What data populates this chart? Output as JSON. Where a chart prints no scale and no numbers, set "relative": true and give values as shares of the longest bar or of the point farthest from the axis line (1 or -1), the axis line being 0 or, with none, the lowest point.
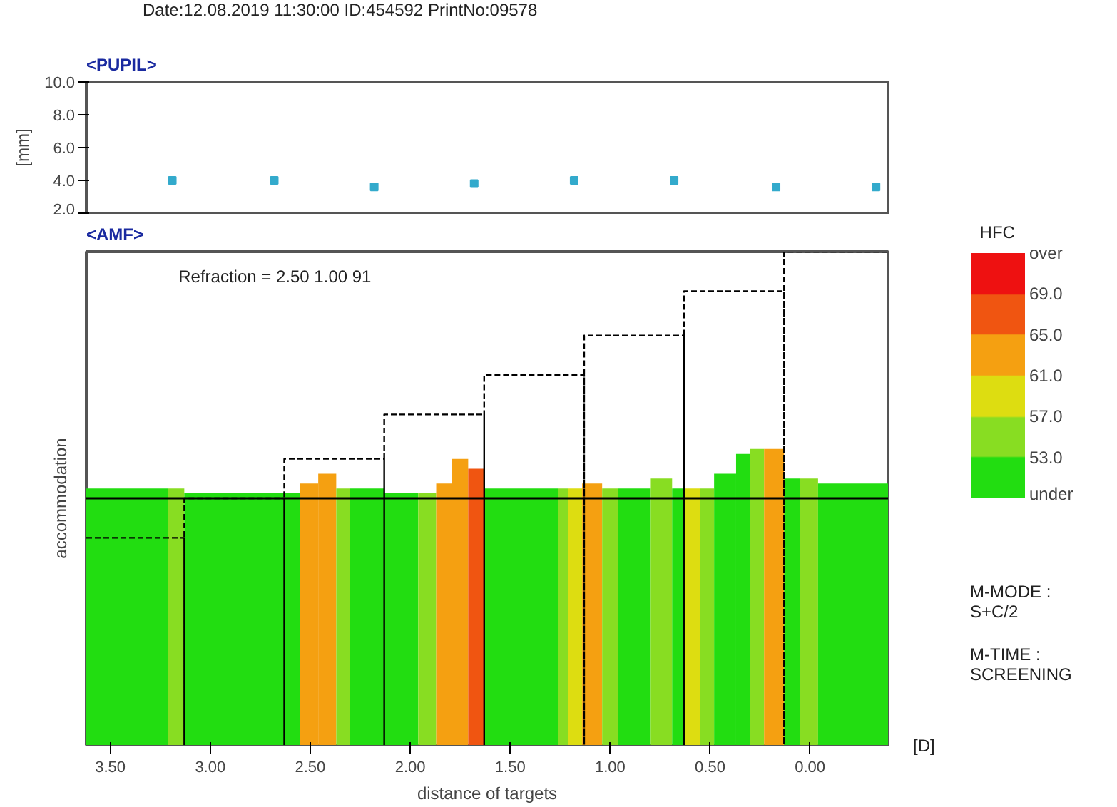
{
  "chart_data": [
    {
      "type": "scatter",
      "title": "<PUPIL>",
      "ylabel": "[mm]",
      "annotations": [
        "Date:12.08.2019 11:30:00  ID:454592  PrintNo:09578"
      ],
      "x": [
        3.19,
        2.68,
        2.18,
        1.68,
        1.18,
        0.68,
        0.17,
        -0.33
      ],
      "series": [
        {
          "color": "#33aacc",
          "values": [
            4.0,
            4.0,
            3.6,
            3.8,
            4.0,
            4.0,
            3.6,
            3.6
          ]
        }
      ],
      "marker": "square",
      "xlim": [
        3.62,
        -0.39
      ],
      "ylim": [
        2.0,
        10.0
      ],
      "yticks": [
        {
          "value": 2,
          "label": "2.0"
        },
        {
          "value": 4,
          "label": "4.0"
        },
        {
          "value": 6,
          "label": "6.0"
        },
        {
          "value": 8,
          "label": "8.0"
        },
        {
          "value": 10,
          "label": "10.0"
        }
      ],
      "tick_labels": "y"
    },
    {
      "type": "histogram",
      "title": "<AMF>",
      "xlabel": "distance of targets",
      "ylabel": "accommodation",
      "clabel": "HFC",
      "relative": true,
      "annotations": [
        "Refraction = 2.50  1.00  91",
        "M-MODE : S+C/2",
        "M-TIME : SCREENING",
        "[D]"
      ],
      "bins": [
        3.62,
        3.21,
        3.13,
        2.55,
        2.46,
        2.37,
        2.3,
        2.13,
        1.96,
        1.87,
        1.79,
        1.71,
        1.63,
        1.26,
        1.21,
        1.14,
        1.04,
        0.96,
        0.8,
        0.69,
        0.63,
        0.55,
        0.48,
        0.37,
        0.3,
        0.23,
        0.13,
        0.05,
        -0.04,
        -0.39
      ],
      "values": [
        0.52,
        0.52,
        0.51,
        0.53,
        0.55,
        0.52,
        0.52,
        0.51,
        0.51,
        0.53,
        0.58,
        0.56,
        0.52,
        0.52,
        0.52,
        0.53,
        0.52,
        0.52,
        0.54,
        0.52,
        0.52,
        0.52,
        0.55,
        0.59,
        0.6,
        0.6,
        0.54,
        0.54,
        0.53
      ],
      "colors": [
        "#22dd11",
        "#88dd22",
        "#22dd11",
        "#f5a011",
        "#f5a011",
        "#88dd22",
        "#22dd11",
        "#22dd11",
        "#88dd22",
        "#f5a011",
        "#f5a011",
        "#f05511",
        "#22dd11",
        "#88dd22",
        "#dddd11",
        "#f5a011",
        "#88dd22",
        "#22dd11",
        "#88dd22",
        "#22dd11",
        "#dddd11",
        "#88dd22",
        "#22dd11",
        "#22dd11",
        "#88dd22",
        "#f5a011",
        "#22dd11",
        "#88dd22",
        "#22dd11"
      ],
      "series": [
        {
          "type": "line",
          "color": "#000000",
          "line_style": "dashed",
          "x": [
            3.62,
            3.13,
            3.13,
            3.13,
            2.63,
            2.63,
            2.63,
            2.13,
            2.13,
            2.13,
            1.63,
            1.63,
            1.63,
            1.13,
            1.13,
            1.13,
            0.63,
            0.63,
            0.63,
            0.13,
            0.13,
            0.13,
            -0.39
          ],
          "values": [
            0.42,
            0.42,
            0,
            0.5,
            0.5,
            0,
            0.58,
            0.58,
            0,
            0.67,
            0.67,
            0,
            0.75,
            0.75,
            0,
            0.83,
            0.83,
            0,
            0.92,
            0.92,
            0,
            1.0,
            1.0
          ]
        }
      ],
      "ref_lines": [
        {
          "axis": "y",
          "value": 0.5,
          "color": "#000000"
        }
      ],
      "xlim": [
        3.62,
        -0.39
      ],
      "xticks": [
        {
          "value": 3.5,
          "label": "3.50"
        },
        {
          "value": 3.0,
          "label": "3.00"
        },
        {
          "value": 2.5,
          "label": "2.50"
        },
        {
          "value": 2.0,
          "label": "2.00"
        },
        {
          "value": 1.5,
          "label": "1.50"
        },
        {
          "value": 1.0,
          "label": "1.00"
        },
        {
          "value": 0.5,
          "label": "0.50"
        },
        {
          "value": 0.0,
          "label": "0.00"
        }
      ],
      "clim": [
        49,
        73
      ],
      "cticks": [
        {
          "value": 49,
          "label": "under"
        },
        {
          "value": 53,
          "label": "53.0"
        },
        {
          "value": 57,
          "label": "57.0"
        },
        {
          "value": 61,
          "label": "61.0"
        },
        {
          "value": 65,
          "label": "65.0"
        },
        {
          "value": 69,
          "label": "69.0"
        },
        {
          "value": 73,
          "label": "over"
        }
      ]
    }
  ]
}
